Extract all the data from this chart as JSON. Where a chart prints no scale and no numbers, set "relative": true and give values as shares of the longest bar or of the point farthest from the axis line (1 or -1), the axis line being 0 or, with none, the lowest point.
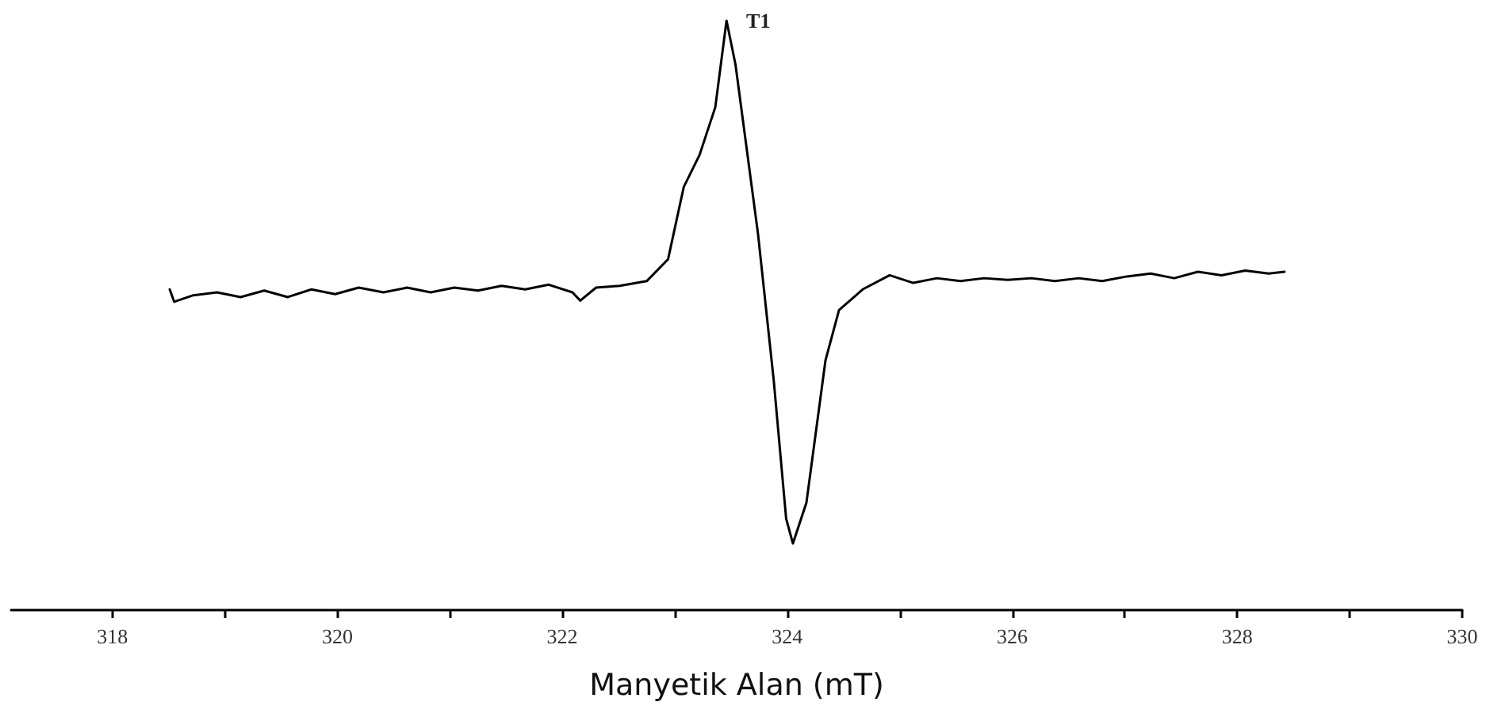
{
  "chart_data": {
    "type": "line",
    "relative": true,
    "xlabel": "Manyetik Alan (mT)",
    "annotations": [
      "T1"
    ],
    "xlim": [
      317.1,
      330
    ],
    "xticks": [
      318,
      {
        "value": 319,
        "label": null
      },
      320,
      {
        "value": 321,
        "label": null
      },
      322,
      {
        "value": 323,
        "label": null
      },
      324,
      {
        "value": 325,
        "label": null
      },
      326,
      {
        "value": 327,
        "label": null
      },
      328,
      {
        "value": 329,
        "label": null
      },
      330
    ],
    "grid": false,
    "marker": "none",
    "line_style": "solid",
    "series": [
      {
        "color": "#000000",
        "x": [
          318.51,
          318.55,
          318.72,
          318.93,
          319.14,
          319.35,
          319.56,
          319.77,
          319.98,
          320.19,
          320.41,
          320.62,
          320.83,
          321.04,
          321.25,
          321.46,
          321.67,
          321.88,
          322.09,
          322.16,
          322.3,
          322.51,
          322.66,
          322.75,
          322.94,
          323.08,
          323.22,
          323.36,
          323.46,
          323.54,
          323.74,
          323.88,
          323.99,
          324.05,
          324.17,
          324.34,
          324.46,
          324.67,
          324.91,
          325.12,
          325.33,
          325.54,
          325.75,
          325.96,
          326.17,
          326.38,
          326.59,
          326.8,
          327.02,
          327.23,
          327.44,
          327.65,
          327.86,
          328.07,
          328.28,
          328.42
        ],
        "values": [
          0.544,
          0.523,
          0.534,
          0.539,
          0.531,
          0.542,
          0.531,
          0.544,
          0.536,
          0.547,
          0.539,
          0.547,
          0.539,
          0.547,
          0.542,
          0.55,
          0.544,
          0.552,
          0.539,
          0.525,
          0.547,
          0.55,
          0.555,
          0.558,
          0.595,
          0.718,
          0.772,
          0.853,
          1.0,
          0.925,
          0.638,
          0.389,
          0.155,
          0.113,
          0.182,
          0.424,
          0.509,
          0.544,
          0.568,
          0.555,
          0.563,
          0.558,
          0.563,
          0.56,
          0.563,
          0.558,
          0.563,
          0.558,
          0.566,
          0.571,
          0.563,
          0.574,
          0.568,
          0.576,
          0.571,
          0.574
        ]
      }
    ]
  }
}
